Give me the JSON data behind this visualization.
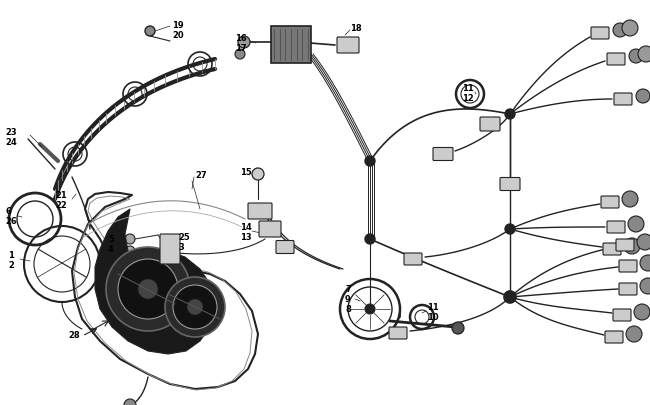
{
  "background_color": "#ffffff",
  "line_color": "#222222",
  "fig_width": 6.5,
  "fig_height": 4.06,
  "dpi": 100
}
